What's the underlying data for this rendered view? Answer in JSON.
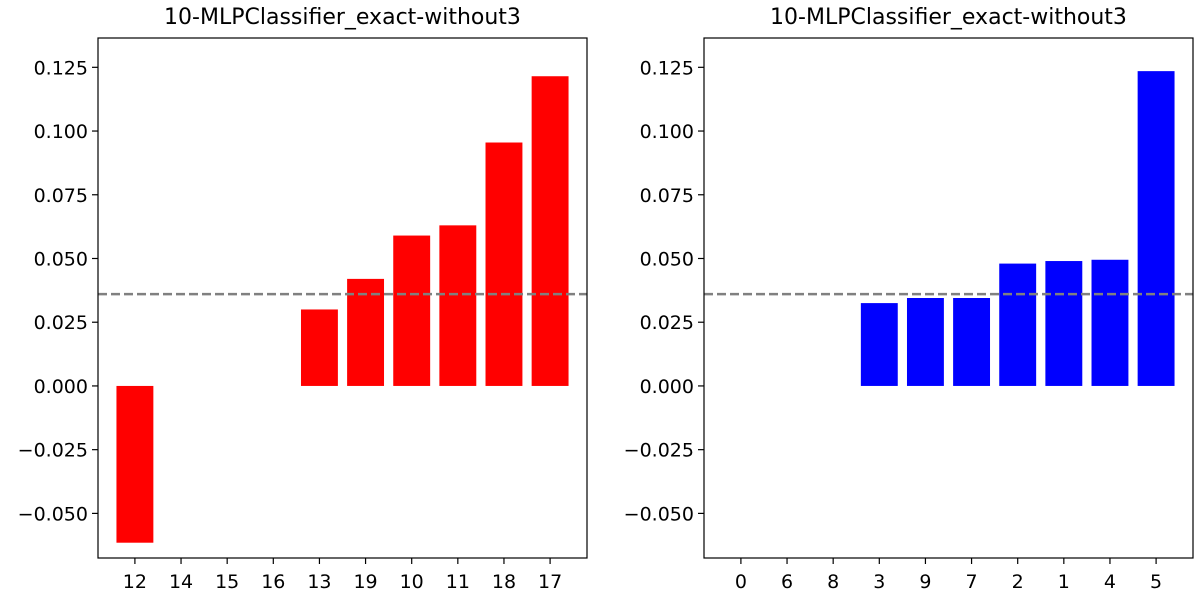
{
  "chart_data": [
    {
      "type": "bar",
      "title": "10-MLPClassifier_exact-without3",
      "xlabel": "",
      "ylabel": "",
      "categories": [
        "12",
        "14",
        "15",
        "16",
        "13",
        "19",
        "10",
        "11",
        "18",
        "17"
      ],
      "values": [
        -0.0615,
        0.0,
        0.0,
        0.0,
        0.03,
        0.042,
        0.059,
        0.063,
        0.0955,
        0.1215
      ],
      "color": "#ff0000",
      "ylim": [
        -0.0675,
        0.1365
      ],
      "yticks": [
        -0.05,
        -0.025,
        0.0,
        0.025,
        0.05,
        0.075,
        0.1,
        0.125
      ],
      "ytick_labels": [
        "−0.050",
        "−0.025",
        "0.000",
        "0.025",
        "0.050",
        "0.075",
        "0.100",
        "0.125"
      ],
      "reference_line": {
        "y": 0.036,
        "style": "dashed",
        "color": "#808080"
      },
      "grid": false,
      "legend": "none"
    },
    {
      "type": "bar",
      "title": "10-MLPClassifier_exact-without3",
      "xlabel": "",
      "ylabel": "",
      "categories": [
        "0",
        "6",
        "8",
        "3",
        "9",
        "7",
        "2",
        "1",
        "4",
        "5"
      ],
      "values": [
        0.0,
        0.0,
        0.0,
        0.0325,
        0.0345,
        0.0345,
        0.048,
        0.049,
        0.0495,
        0.1235
      ],
      "color": "#0000ff",
      "ylim": [
        -0.0675,
        0.1365
      ],
      "yticks": [
        -0.05,
        -0.025,
        0.0,
        0.025,
        0.05,
        0.075,
        0.1,
        0.125
      ],
      "ytick_labels": [
        "−0.050",
        "−0.025",
        "0.000",
        "0.025",
        "0.050",
        "0.075",
        "0.100",
        "0.125"
      ],
      "reference_line": {
        "y": 0.036,
        "style": "dashed",
        "color": "#808080"
      },
      "grid": false,
      "legend": "none"
    }
  ]
}
